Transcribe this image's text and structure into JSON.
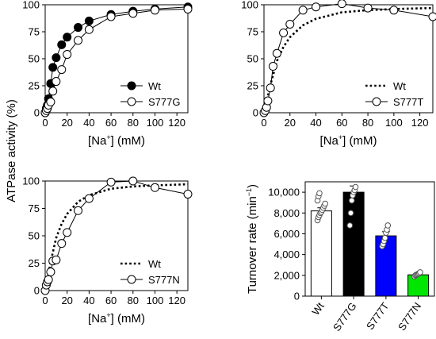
{
  "figure": {
    "shared_ylabel": "ATPase activity (%)"
  },
  "chart_data": [
    {
      "type": "scatter",
      "xlabel": "[Na",
      "xlabel_sup": "+",
      "xlabel_unit": "] (mM)",
      "xlim": [
        0,
        130
      ],
      "ylim": [
        0,
        100
      ],
      "xticks": [
        0,
        20,
        40,
        60,
        80,
        100,
        120
      ],
      "yticks": [
        0,
        25,
        50,
        75,
        100
      ],
      "legend_position": "bottom-right",
      "series": [
        {
          "name": "Wt",
          "marker": "filled-circle",
          "line": "solid",
          "x": [
            0,
            1,
            2,
            3,
            5,
            7,
            10,
            15,
            20,
            30,
            40,
            60,
            80,
            100,
            130
          ],
          "y": [
            0,
            4,
            7,
            13,
            27,
            42,
            51,
            63,
            70,
            79,
            85,
            91,
            94,
            96,
            98
          ]
        },
        {
          "name": "S777G",
          "marker": "open-circle",
          "line": "solid",
          "x": [
            0,
            1,
            2,
            3,
            5,
            7,
            10,
            15,
            20,
            30,
            40,
            60,
            80,
            100,
            130
          ],
          "y": [
            0,
            2,
            4,
            7,
            10,
            20,
            29,
            40,
            54,
            67,
            77,
            89,
            92,
            95,
            96
          ]
        }
      ]
    },
    {
      "type": "scatter",
      "xlabel": "[Na",
      "xlabel_sup": "+",
      "xlabel_unit": "] (mM)",
      "xlim": [
        0,
        130
      ],
      "ylim": [
        0,
        100
      ],
      "xticks": [
        0,
        20,
        40,
        60,
        80,
        100,
        120
      ],
      "yticks": [
        0,
        25,
        50,
        75,
        100
      ],
      "legend_position": "bottom-right",
      "series": [
        {
          "name": "Wt",
          "marker": "none",
          "line": "dotted",
          "x": [
            0,
            2,
            5,
            10,
            15,
            20,
            30,
            40,
            60,
            80,
            100,
            130
          ],
          "y": [
            0,
            10,
            26,
            48,
            61,
            70,
            81,
            87,
            93,
            95,
            96,
            97
          ]
        },
        {
          "name": "S777T",
          "marker": "open-circle",
          "line": "solid",
          "x": [
            0,
            1,
            2,
            3,
            5,
            7,
            10,
            15,
            20,
            30,
            40,
            60,
            80,
            100,
            130
          ],
          "y": [
            0,
            2,
            5,
            11,
            23,
            43,
            55,
            74,
            82,
            95,
            98,
            101,
            97,
            95,
            89
          ]
        }
      ]
    },
    {
      "type": "scatter",
      "xlabel": "[Na",
      "xlabel_sup": "+",
      "xlabel_unit": "] (mM)",
      "xlim": [
        0,
        130
      ],
      "ylim": [
        0,
        100
      ],
      "xticks": [
        0,
        20,
        40,
        60,
        80,
        100,
        120
      ],
      "yticks": [
        0,
        25,
        50,
        75,
        100
      ],
      "legend_position": "bottom-right",
      "series": [
        {
          "name": "Wt",
          "marker": "none",
          "line": "dotted",
          "x": [
            0,
            2,
            5,
            10,
            15,
            20,
            30,
            40,
            60,
            80,
            100,
            130
          ],
          "y": [
            0,
            10,
            26,
            48,
            61,
            70,
            81,
            87,
            93,
            95,
            96,
            97
          ]
        },
        {
          "name": "S777N",
          "marker": "open-circle",
          "line": "solid",
          "x": [
            0,
            1,
            2,
            3,
            5,
            7,
            10,
            15,
            20,
            30,
            40,
            60,
            80,
            100,
            130
          ],
          "y": [
            0,
            5,
            8,
            10,
            17,
            27,
            28,
            43,
            53,
            73,
            84,
            99,
            100,
            94,
            88
          ]
        }
      ]
    },
    {
      "type": "bar",
      "ylabel": "Turnover rate (min",
      "ylabel_sup": "−1",
      "ylabel_end": ")",
      "ylim": [
        0,
        11000
      ],
      "yticks": [
        0,
        2000,
        4000,
        6000,
        8000,
        10000
      ],
      "ytick_labels": [
        "0",
        "2,000",
        "4,000",
        "6,000",
        "8,000",
        "10,000"
      ],
      "categories": [
        "Wt",
        "S777G",
        "S777T",
        "S777N"
      ],
      "values": [
        8200,
        10000,
        5800,
        2050
      ],
      "errors": [
        300,
        600,
        400,
        150
      ],
      "colors": [
        "#ffffff",
        "#000000",
        "#0000ff",
        "#00e600"
      ],
      "points": [
        [
          7300,
          7600,
          7800,
          8000,
          8100,
          8300,
          8500,
          8700,
          8900,
          9200,
          9600,
          9900
        ],
        [
          6800,
          8000,
          9200,
          9700,
          10000,
          10200,
          10500
        ],
        [
          4800,
          5000,
          5300,
          5600,
          6100,
          6400,
          6800
        ],
        [
          1900,
          2000,
          2050,
          2100,
          2150,
          2200,
          2300
        ]
      ]
    }
  ]
}
